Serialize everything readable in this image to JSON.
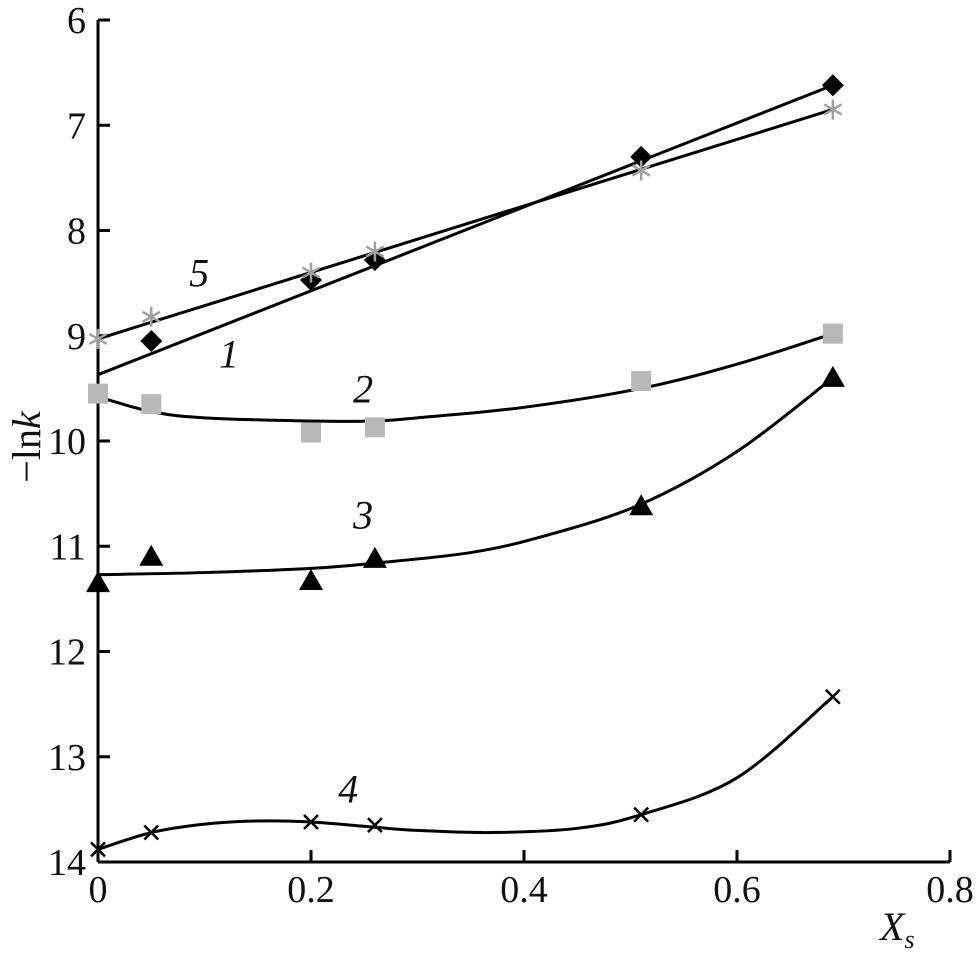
{
  "chart_data": {
    "type": "scatter",
    "xlabel": "X",
    "xlabel_sub": "s",
    "ylabel": "−ln",
    "ylabel_italic": "k",
    "xlim": [
      0,
      0.8
    ],
    "ylim": [
      14,
      6
    ],
    "y_inverted": true,
    "grid": false,
    "x_ticks": [
      0,
      0.2,
      0.4,
      0.6,
      0.8
    ],
    "x_tick_labels": [
      "0",
      "0.2",
      "0.4",
      "0.6",
      "0.8"
    ],
    "y_ticks": [
      6,
      7,
      8,
      9,
      10,
      11,
      12,
      13,
      14
    ],
    "y_tick_labels": [
      "6",
      "7",
      "8",
      "9",
      "10",
      "11",
      "12",
      "13",
      "14"
    ],
    "series": [
      {
        "name": "1",
        "marker": "diamond",
        "color": "#000000",
        "x": [
          0.05,
          0.2,
          0.26,
          0.51,
          0.69
        ],
        "y": [
          9.05,
          8.47,
          8.28,
          7.3,
          6.62
        ],
        "fit": {
          "x": [
            0,
            0.69
          ],
          "y": [
            9.37,
            6.62
          ]
        }
      },
      {
        "name": "2",
        "marker": "square",
        "color": "#b8b8b8",
        "x": [
          0,
          0.05,
          0.2,
          0.26,
          0.51,
          0.69
        ],
        "y": [
          9.55,
          9.65,
          9.92,
          9.87,
          9.43,
          8.98
        ],
        "fit": {
          "x": [
            0,
            0.05,
            0.1,
            0.2,
            0.26,
            0.3,
            0.4,
            0.51,
            0.6,
            0.69
          ],
          "y": [
            9.58,
            9.72,
            9.78,
            9.81,
            9.81,
            9.78,
            9.68,
            9.5,
            9.27,
            8.98
          ]
        }
      },
      {
        "name": "3",
        "marker": "triangle",
        "color": "#000000",
        "x": [
          0,
          0.05,
          0.2,
          0.26,
          0.51,
          0.69
        ],
        "y": [
          11.35,
          11.1,
          11.33,
          11.12,
          10.62,
          9.4
        ],
        "fit": {
          "x": [
            0,
            0.1,
            0.2,
            0.26,
            0.35,
            0.42,
            0.51,
            0.6,
            0.69
          ],
          "y": [
            11.27,
            11.25,
            11.21,
            11.16,
            11.06,
            10.9,
            10.6,
            10.1,
            9.4
          ]
        }
      },
      {
        "name": "4",
        "marker": "x",
        "color": "#000000",
        "x": [
          0,
          0.05,
          0.2,
          0.26,
          0.51,
          0.69
        ],
        "y": [
          13.88,
          13.72,
          13.62,
          13.65,
          13.55,
          12.43
        ],
        "fit": {
          "x": [
            0,
            0.05,
            0.1,
            0.15,
            0.2,
            0.26,
            0.3,
            0.37,
            0.45,
            0.51,
            0.6,
            0.69
          ],
          "y": [
            13.88,
            13.72,
            13.64,
            13.61,
            13.62,
            13.67,
            13.7,
            13.72,
            13.68,
            13.55,
            13.2,
            12.43
          ]
        }
      },
      {
        "name": "5",
        "marker": "asterisk",
        "color": "#a0a0a0",
        "x": [
          0,
          0.05,
          0.2,
          0.26,
          0.51,
          0.69
        ],
        "y": [
          9.03,
          8.82,
          8.4,
          8.2,
          7.43,
          6.85
        ],
        "fit": {
          "x": [
            0,
            0.69
          ],
          "y": [
            9.03,
            6.85
          ]
        }
      }
    ],
    "curve_labels": [
      {
        "series": "5",
        "text": "5",
        "x": 0.095,
        "y": 8.4
      },
      {
        "series": "1",
        "text": "1",
        "x": 0.123,
        "y": 9.17
      },
      {
        "series": "2",
        "text": "2",
        "x": 0.249,
        "y": 9.5
      },
      {
        "series": "3",
        "text": "3",
        "x": 0.249,
        "y": 10.7
      },
      {
        "series": "4",
        "text": "4",
        "x": 0.235,
        "y": 13.3
      }
    ]
  }
}
